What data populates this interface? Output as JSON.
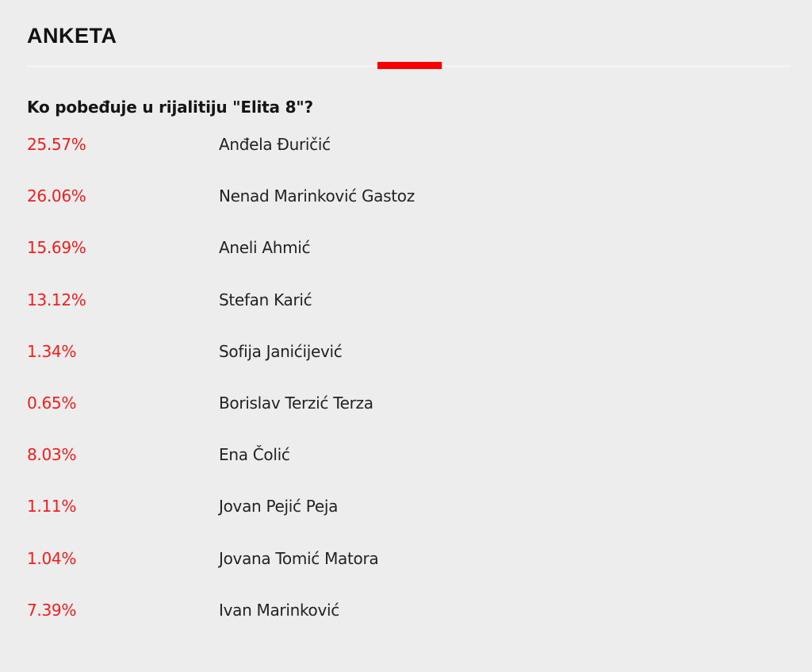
{
  "poll": {
    "title": "ANKETA",
    "question": "Ko pobeđuje u rijalitiju \"Elita 8\"?",
    "accent_color": "#f80000",
    "options": [
      {
        "percent": "25.57%",
        "name": "Anđela Đuričić"
      },
      {
        "percent": "26.06%",
        "name": "Nenad Marinković Gastoz"
      },
      {
        "percent": "15.69%",
        "name": "Aneli Ahmić"
      },
      {
        "percent": "13.12%",
        "name": "Stefan Karić"
      },
      {
        "percent": "1.34%",
        "name": "Sofija Janićijević"
      },
      {
        "percent": "0.65%",
        "name": "Borislav Terzić Terza"
      },
      {
        "percent": "8.03%",
        "name": "Ena Čolić"
      },
      {
        "percent": "1.11%",
        "name": "Jovan Pejić Peja"
      },
      {
        "percent": "1.04%",
        "name": "Jovana Tomić Matora"
      },
      {
        "percent": "7.39%",
        "name": "Ivan Marinković"
      }
    ]
  }
}
